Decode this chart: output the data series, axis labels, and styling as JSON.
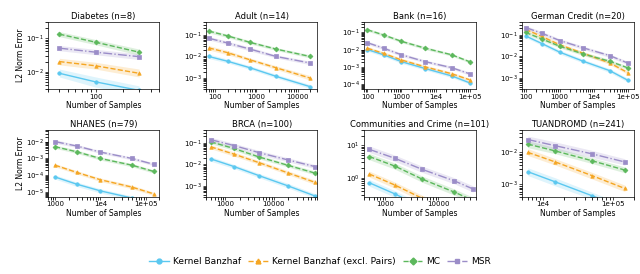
{
  "subplots": [
    {
      "title": "Diabetes (n=8)",
      "xlim": [
        30,
        500
      ],
      "ylim": [
        0.003,
        0.3
      ],
      "xticks": [
        100
      ],
      "row": 0,
      "col": 0,
      "lines": {
        "kb": {
          "x": [
            40,
            100,
            300
          ],
          "y": [
            0.009,
            0.005,
            0.0028
          ],
          "yerr_lo": [
            0.002,
            0.0015,
            0.0008
          ],
          "yerr_hi": [
            0.003,
            0.002,
            0.001
          ]
        },
        "kbep": {
          "x": [
            40,
            100,
            300
          ],
          "y": [
            0.02,
            0.015,
            0.009
          ],
          "yerr_lo": [
            0.004,
            0.003,
            0.002
          ],
          "yerr_hi": [
            0.005,
            0.004,
            0.003
          ]
        },
        "mc": {
          "x": [
            40,
            100,
            300
          ],
          "y": [
            0.13,
            0.075,
            0.038
          ],
          "yerr_lo": [
            0.02,
            0.012,
            0.007
          ],
          "yerr_hi": [
            0.025,
            0.015,
            0.009
          ]
        },
        "msr": {
          "x": [
            40,
            100,
            300
          ],
          "y": [
            0.05,
            0.038,
            0.028
          ],
          "yerr_lo": [
            0.008,
            0.006,
            0.005
          ],
          "yerr_hi": [
            0.01,
            0.008,
            0.006
          ]
        }
      }
    },
    {
      "title": "Adult (n=14)",
      "xlim": [
        60,
        30000
      ],
      "ylim": [
        0.0003,
        0.4
      ],
      "xticks": [
        100,
        1000,
        10000
      ],
      "row": 0,
      "col": 1,
      "lines": {
        "kb": {
          "x": [
            70,
            200,
            700,
            3000,
            20000
          ],
          "y": [
            0.01,
            0.006,
            0.003,
            0.0012,
            0.0004
          ],
          "yerr_lo": [
            0.002,
            0.001,
            0.0005,
            0.0002,
            7e-05
          ],
          "yerr_hi": [
            0.003,
            0.0015,
            0.0007,
            0.0003,
            0.0001
          ]
        },
        "kbep": {
          "x": [
            70,
            200,
            700,
            3000,
            20000
          ],
          "y": [
            0.025,
            0.015,
            0.007,
            0.003,
            0.001
          ],
          "yerr_lo": [
            0.005,
            0.003,
            0.001,
            0.0005,
            0.0002
          ],
          "yerr_hi": [
            0.007,
            0.004,
            0.0015,
            0.0007,
            0.0003
          ]
        },
        "mc": {
          "x": [
            70,
            200,
            700,
            3000,
            20000
          ],
          "y": [
            0.15,
            0.09,
            0.045,
            0.022,
            0.01
          ],
          "yerr_lo": [
            0.025,
            0.015,
            0.007,
            0.003,
            0.0015
          ],
          "yerr_hi": [
            0.03,
            0.018,
            0.009,
            0.004,
            0.002
          ]
        },
        "msr": {
          "x": [
            70,
            200,
            700,
            3000,
            20000
          ],
          "y": [
            0.07,
            0.042,
            0.022,
            0.01,
            0.005
          ],
          "yerr_lo": [
            0.012,
            0.007,
            0.004,
            0.0015,
            0.0008
          ],
          "yerr_hi": [
            0.015,
            0.009,
            0.005,
            0.002,
            0.001
          ]
        }
      }
    },
    {
      "title": "Bank (n=16)",
      "xlim": [
        80,
        150000
      ],
      "ylim": [
        5e-05,
        0.4
      ],
      "xticks": [
        100,
        1000,
        10000,
        100000
      ],
      "row": 0,
      "col": 2,
      "lines": {
        "kb": {
          "x": [
            100,
            300,
            1000,
            5000,
            30000,
            100000
          ],
          "y": [
            0.01,
            0.005,
            0.002,
            0.0008,
            0.0003,
            0.00012
          ],
          "yerr_lo": [
            0.002,
            0.001,
            0.0004,
            0.00015,
            6e-05,
            2e-05
          ],
          "yerr_hi": [
            0.003,
            0.0015,
            0.0006,
            0.0002,
            8e-05,
            3e-05
          ]
        },
        "kbep": {
          "x": [
            100,
            300,
            1000,
            5000,
            30000,
            100000
          ],
          "y": [
            0.012,
            0.006,
            0.0025,
            0.001,
            0.0004,
            0.00018
          ],
          "yerr_lo": [
            0.002,
            0.001,
            0.0005,
            0.0002,
            7e-05,
            3e-05
          ],
          "yerr_hi": [
            0.003,
            0.0015,
            0.0007,
            0.00025,
            0.0001,
            4e-05
          ]
        },
        "mc": {
          "x": [
            100,
            300,
            1000,
            5000,
            30000,
            100000
          ],
          "y": [
            0.14,
            0.07,
            0.03,
            0.012,
            0.005,
            0.002
          ],
          "yerr_lo": [
            0.025,
            0.012,
            0.005,
            0.002,
            0.0008,
            0.0003
          ],
          "yerr_hi": [
            0.03,
            0.015,
            0.007,
            0.003,
            0.001,
            0.0004
          ]
        },
        "msr": {
          "x": [
            100,
            300,
            1000,
            5000,
            30000,
            100000
          ],
          "y": [
            0.025,
            0.012,
            0.005,
            0.002,
            0.0009,
            0.0004
          ],
          "yerr_lo": [
            0.005,
            0.002,
            0.001,
            0.0003,
            0.00015,
            7e-05
          ],
          "yerr_hi": [
            0.006,
            0.003,
            0.0013,
            0.0005,
            0.0002,
            0.0001
          ]
        }
      }
    },
    {
      "title": "German Credit (n=20)",
      "xlim": [
        80,
        150000
      ],
      "ylim": [
        0.0003,
        0.4
      ],
      "xticks": [
        100,
        1000,
        10000,
        100000
      ],
      "row": 0,
      "col": 3,
      "lines": {
        "kb": {
          "x": [
            100,
            300,
            1000,
            5000,
            30000,
            100000
          ],
          "y": [
            0.09,
            0.04,
            0.016,
            0.006,
            0.0022,
            0.0008
          ],
          "yerr_lo": [
            0.015,
            0.007,
            0.003,
            0.001,
            0.0004,
            0.00015
          ],
          "yerr_hi": [
            0.02,
            0.009,
            0.004,
            0.0015,
            0.0005,
            0.0002
          ]
        },
        "kbep": {
          "x": [
            100,
            300,
            1000,
            5000,
            30000,
            100000
          ],
          "y": [
            0.18,
            0.085,
            0.035,
            0.014,
            0.005,
            0.0018
          ],
          "yerr_lo": [
            0.03,
            0.014,
            0.006,
            0.002,
            0.0008,
            0.0003
          ],
          "yerr_hi": [
            0.035,
            0.018,
            0.008,
            0.003,
            0.001,
            0.0004
          ]
        },
        "mc": {
          "x": [
            100,
            300,
            1000,
            5000,
            30000,
            100000
          ],
          "y": [
            0.13,
            0.065,
            0.03,
            0.013,
            0.006,
            0.003
          ],
          "yerr_lo": [
            0.022,
            0.011,
            0.005,
            0.002,
            0.001,
            0.0005
          ],
          "yerr_hi": [
            0.027,
            0.014,
            0.007,
            0.003,
            0.0013,
            0.0006
          ]
        },
        "msr": {
          "x": [
            100,
            300,
            1000,
            5000,
            30000,
            100000
          ],
          "y": [
            0.22,
            0.12,
            0.055,
            0.025,
            0.011,
            0.005
          ],
          "yerr_lo": [
            0.04,
            0.02,
            0.009,
            0.004,
            0.002,
            0.0008
          ],
          "yerr_hi": [
            0.05,
            0.025,
            0.012,
            0.005,
            0.002,
            0.001
          ]
        }
      }
    },
    {
      "title": "NHANES (n=79)",
      "xlim": [
        700,
        200000
      ],
      "ylim": [
        5e-06,
        0.05
      ],
      "xticks": [
        1000,
        10000,
        100000
      ],
      "row": 1,
      "col": 0,
      "lines": {
        "kb": {
          "x": [
            1000,
            3000,
            10000,
            50000,
            150000
          ],
          "y": [
            8e-05,
            3e-05,
            1.2e-05,
            4.5e-06,
            1.8e-06
          ],
          "yerr_lo": [
            2e-05,
            8e-06,
            3e-06,
            1e-06,
            4e-07
          ],
          "yerr_hi": [
            2.5e-05,
            1e-05,
            4e-06,
            1.4e-06,
            5e-07
          ]
        },
        "kbep": {
          "x": [
            1000,
            3000,
            10000,
            50000,
            150000
          ],
          "y": [
            0.0004,
            0.00015,
            5.5e-05,
            2e-05,
            8e-06
          ],
          "yerr_lo": [
            8e-05,
            3e-05,
            1.2e-05,
            4e-06,
            1.6e-06
          ],
          "yerr_hi": [
            0.0001,
            4e-05,
            1.5e-05,
            6e-06,
            2e-06
          ]
        },
        "mc": {
          "x": [
            1000,
            3000,
            10000,
            50000,
            150000
          ],
          "y": [
            0.005,
            0.0025,
            0.001,
            0.0004,
            0.00017
          ],
          "yerr_lo": [
            0.001,
            0.0005,
            0.0002,
            8e-05,
            3.5e-05
          ],
          "yerr_hi": [
            0.0013,
            0.0007,
            0.00025,
            0.0001,
            4.5e-05
          ]
        },
        "msr": {
          "x": [
            1000,
            3000,
            10000,
            50000,
            150000
          ],
          "y": [
            0.01,
            0.0055,
            0.0024,
            0.001,
            0.00045
          ],
          "yerr_lo": [
            0.002,
            0.001,
            0.0004,
            0.00018,
            8e-05
          ],
          "yerr_hi": [
            0.003,
            0.0013,
            0.0006,
            0.00022,
            0.0001
          ]
        }
      }
    },
    {
      "title": "BRCA (n=100)",
      "xlim": [
        400,
        80000
      ],
      "ylim": [
        0.0003,
        0.4
      ],
      "xticks": [
        1000,
        10000
      ],
      "row": 1,
      "col": 1,
      "lines": {
        "kb": {
          "x": [
            500,
            1500,
            5000,
            20000,
            70000
          ],
          "y": [
            0.018,
            0.008,
            0.003,
            0.001,
            0.00035
          ],
          "yerr_lo": [
            0.004,
            0.0015,
            0.0006,
            0.0002,
            7e-05
          ],
          "yerr_hi": [
            0.005,
            0.002,
            0.0008,
            0.0003,
            0.0001
          ]
        },
        "kbep": {
          "x": [
            500,
            1500,
            5000,
            20000,
            70000
          ],
          "y": [
            0.065,
            0.03,
            0.012,
            0.004,
            0.0015
          ],
          "yerr_lo": [
            0.012,
            0.006,
            0.002,
            0.0007,
            0.0003
          ],
          "yerr_hi": [
            0.016,
            0.008,
            0.003,
            0.001,
            0.0004
          ]
        },
        "mc": {
          "x": [
            500,
            1500,
            5000,
            20000,
            70000
          ],
          "y": [
            0.11,
            0.055,
            0.022,
            0.009,
            0.004
          ],
          "yerr_lo": [
            0.02,
            0.01,
            0.004,
            0.0015,
            0.0007
          ],
          "yerr_hi": [
            0.025,
            0.013,
            0.005,
            0.002,
            0.001
          ]
        },
        "msr": {
          "x": [
            500,
            1500,
            5000,
            20000,
            70000
          ],
          "y": [
            0.14,
            0.075,
            0.035,
            0.016,
            0.008
          ],
          "yerr_lo": [
            0.03,
            0.015,
            0.007,
            0.003,
            0.0015
          ],
          "yerr_hi": [
            0.04,
            0.02,
            0.009,
            0.004,
            0.002
          ]
        }
      }
    },
    {
      "title": "Communities and Crime (n=101)",
      "xlim": [
        400,
        50000
      ],
      "ylim": [
        0.25,
        30
      ],
      "xticks": [
        1000,
        10000
      ],
      "row": 1,
      "col": 2,
      "lines": {
        "kb": {
          "x": [
            500,
            1500,
            5000,
            20000,
            45000
          ],
          "y": [
            0.7,
            0.32,
            0.12,
            0.044,
            0.022
          ],
          "yerr_lo": [
            0.15,
            0.07,
            0.025,
            0.009,
            0.004
          ],
          "yerr_hi": [
            0.18,
            0.08,
            0.03,
            0.011,
            0.005
          ]
        },
        "kbep": {
          "x": [
            500,
            1500,
            5000,
            20000,
            45000
          ],
          "y": [
            1.3,
            0.6,
            0.23,
            0.085,
            0.042
          ],
          "yerr_lo": [
            0.25,
            0.12,
            0.045,
            0.016,
            0.008
          ],
          "yerr_hi": [
            0.3,
            0.14,
            0.055,
            0.02,
            0.01
          ]
        },
        "mc": {
          "x": [
            500,
            1500,
            5000,
            20000,
            45000
          ],
          "y": [
            4.5,
            2.3,
            0.9,
            0.36,
            0.2
          ],
          "yerr_lo": [
            0.9,
            0.45,
            0.18,
            0.07,
            0.04
          ],
          "yerr_hi": [
            1.1,
            0.55,
            0.22,
            0.09,
            0.05
          ]
        },
        "msr": {
          "x": [
            500,
            1500,
            5000,
            20000,
            45000
          ],
          "y": [
            7.5,
            4.0,
            1.8,
            0.8,
            0.45
          ],
          "yerr_lo": [
            1.5,
            0.8,
            0.35,
            0.15,
            0.09
          ],
          "yerr_hi": [
            2.0,
            1.0,
            0.45,
            0.2,
            0.11
          ]
        }
      }
    },
    {
      "title": "TUANDROMD (n=241)",
      "xlim": [
        5000,
        200000
      ],
      "ylim": [
        0.0004,
        0.05
      ],
      "xticks": [
        10000,
        100000
      ],
      "row": 1,
      "col": 3,
      "lines": {
        "kb": {
          "x": [
            6000,
            15000,
            50000,
            150000
          ],
          "y": [
            0.0025,
            0.0012,
            0.00045,
            0.00018
          ],
          "yerr_lo": [
            0.0006,
            0.0003,
            0.0001,
            4e-05
          ],
          "yerr_hi": [
            0.0008,
            0.0004,
            0.00013,
            5e-05
          ]
        },
        "kbep": {
          "x": [
            6000,
            15000,
            50000,
            150000
          ],
          "y": [
            0.01,
            0.005,
            0.0019,
            0.00075
          ],
          "yerr_lo": [
            0.002,
            0.001,
            0.0004,
            0.00015
          ],
          "yerr_hi": [
            0.003,
            0.0013,
            0.0005,
            0.0002
          ]
        },
        "mc": {
          "x": [
            6000,
            15000,
            50000,
            150000
          ],
          "y": [
            0.018,
            0.011,
            0.0055,
            0.0028
          ],
          "yerr_lo": [
            0.004,
            0.002,
            0.001,
            0.0005
          ],
          "yerr_hi": [
            0.005,
            0.003,
            0.0013,
            0.0007
          ]
        },
        "msr": {
          "x": [
            6000,
            15000,
            50000,
            150000
          ],
          "y": [
            0.025,
            0.016,
            0.009,
            0.005
          ],
          "yerr_lo": [
            0.006,
            0.004,
            0.002,
            0.001
          ],
          "yerr_hi": [
            0.007,
            0.005,
            0.0025,
            0.0013
          ]
        }
      }
    }
  ],
  "colors": {
    "kb": "#5bc8f0",
    "kbep": "#f5a623",
    "mc": "#5cb85c",
    "msr": "#9b8dc8"
  },
  "legend": {
    "kb": "Kernel Banzhaf",
    "kbep": "Kernel Banzhaf (excl. Pairs)",
    "mc": "MC",
    "msr": "MSR"
  },
  "line_styles": {
    "kb": {
      "ls": "-",
      "marker": "o",
      "ms": 2.5,
      "lw": 1.0
    },
    "kbep": {
      "ls": "--",
      "marker": "^",
      "ms": 2.5,
      "lw": 1.0
    },
    "mc": {
      "ls": "--",
      "marker": "D",
      "ms": 2.5,
      "lw": 1.0
    },
    "msr": {
      "ls": "-.",
      "marker": "s",
      "ms": 2.5,
      "lw": 1.0
    }
  },
  "ylabel": "L2 Norm Error",
  "xlabel": "Number of Samples",
  "figsize": [
    6.4,
    2.74
  ],
  "dpi": 100
}
